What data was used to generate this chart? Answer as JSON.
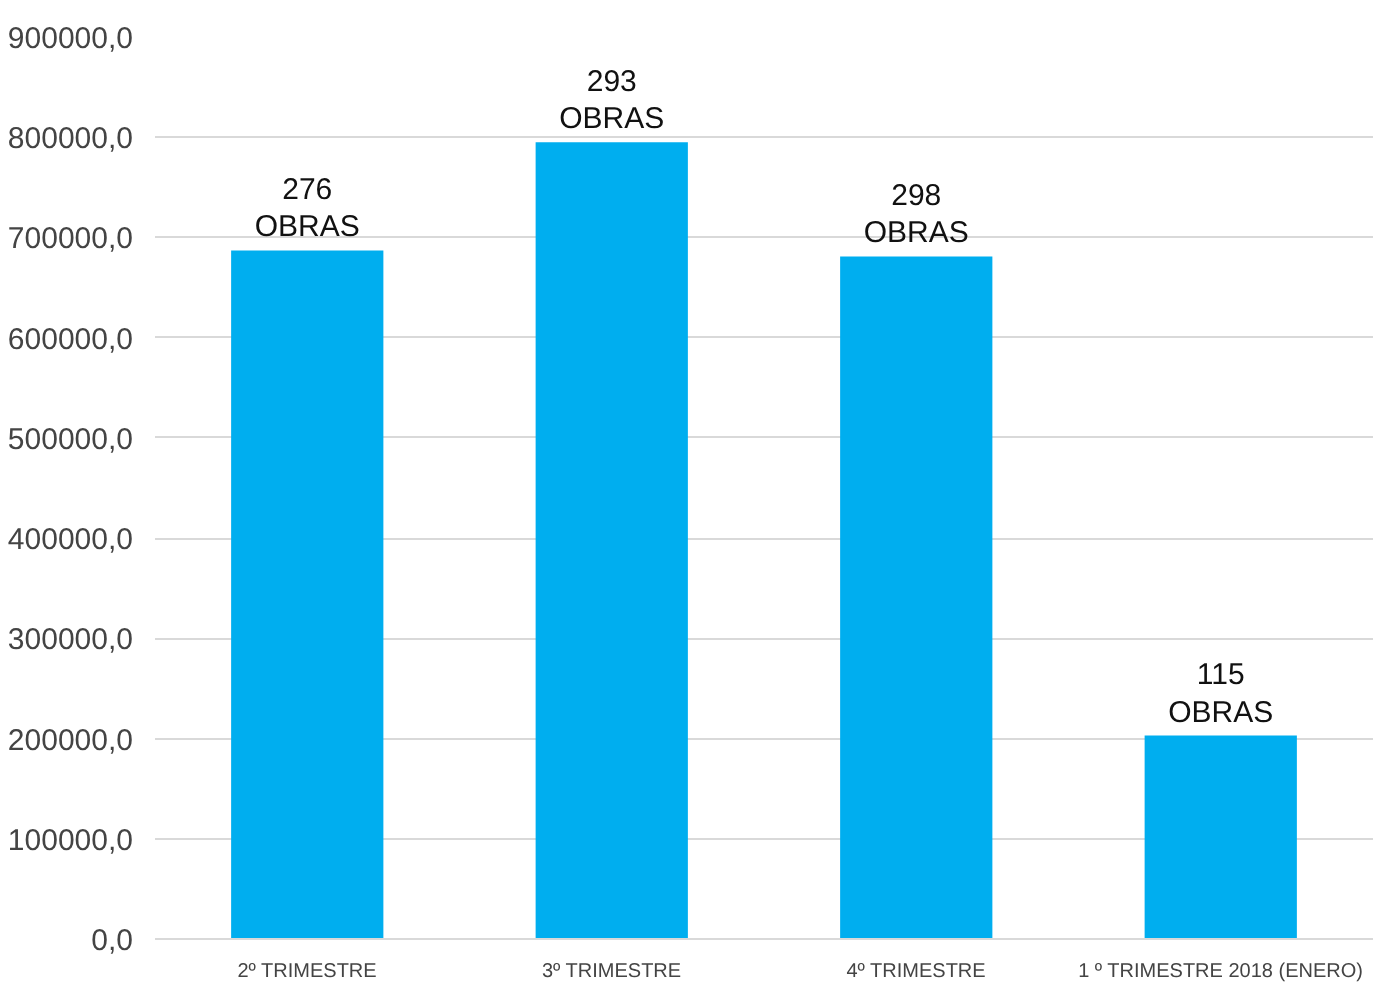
{
  "chart_data": {
    "type": "bar",
    "categories": [
      "2º TRIMESTRE",
      "3º TRIMESTRE",
      "4º TRIMESTRE",
      "1 º TRIMESTRE 2018 (ENERO)"
    ],
    "values": [
      687000,
      795000,
      681000,
      203000
    ],
    "color": "#00aeef",
    "annotations": [
      {
        "text": "276\nOBRAS",
        "x": "2º TRIMESTRE",
        "y": 687000
      },
      {
        "text": "293\nOBRAS",
        "x": "3º TRIMESTRE",
        "y": 795000
      },
      {
        "text": "298\nOBRAS",
        "x": "4º TRIMESTRE",
        "y": 681000
      },
      {
        "text": "115\nOBRAS",
        "x": "1 º TRIMESTRE 2018 (ENERO)",
        "y": 203000
      }
    ],
    "ylim": [
      0,
      900000
    ],
    "yticks": [
      {
        "value": 0,
        "label": "0,0"
      },
      {
        "value": 100000,
        "label": "100000,0"
      },
      {
        "value": 200000,
        "label": "200000,0"
      },
      {
        "value": 300000,
        "label": "300000,0"
      },
      {
        "value": 400000,
        "label": "400000,0"
      },
      {
        "value": 500000,
        "label": "500000,0"
      },
      {
        "value": 600000,
        "label": "600000,0"
      },
      {
        "value": 700000,
        "label": "700000,0"
      },
      {
        "value": 800000,
        "label": "800000,0"
      },
      {
        "value": 900000,
        "label": "900000,0"
      }
    ],
    "grid": "y"
  }
}
